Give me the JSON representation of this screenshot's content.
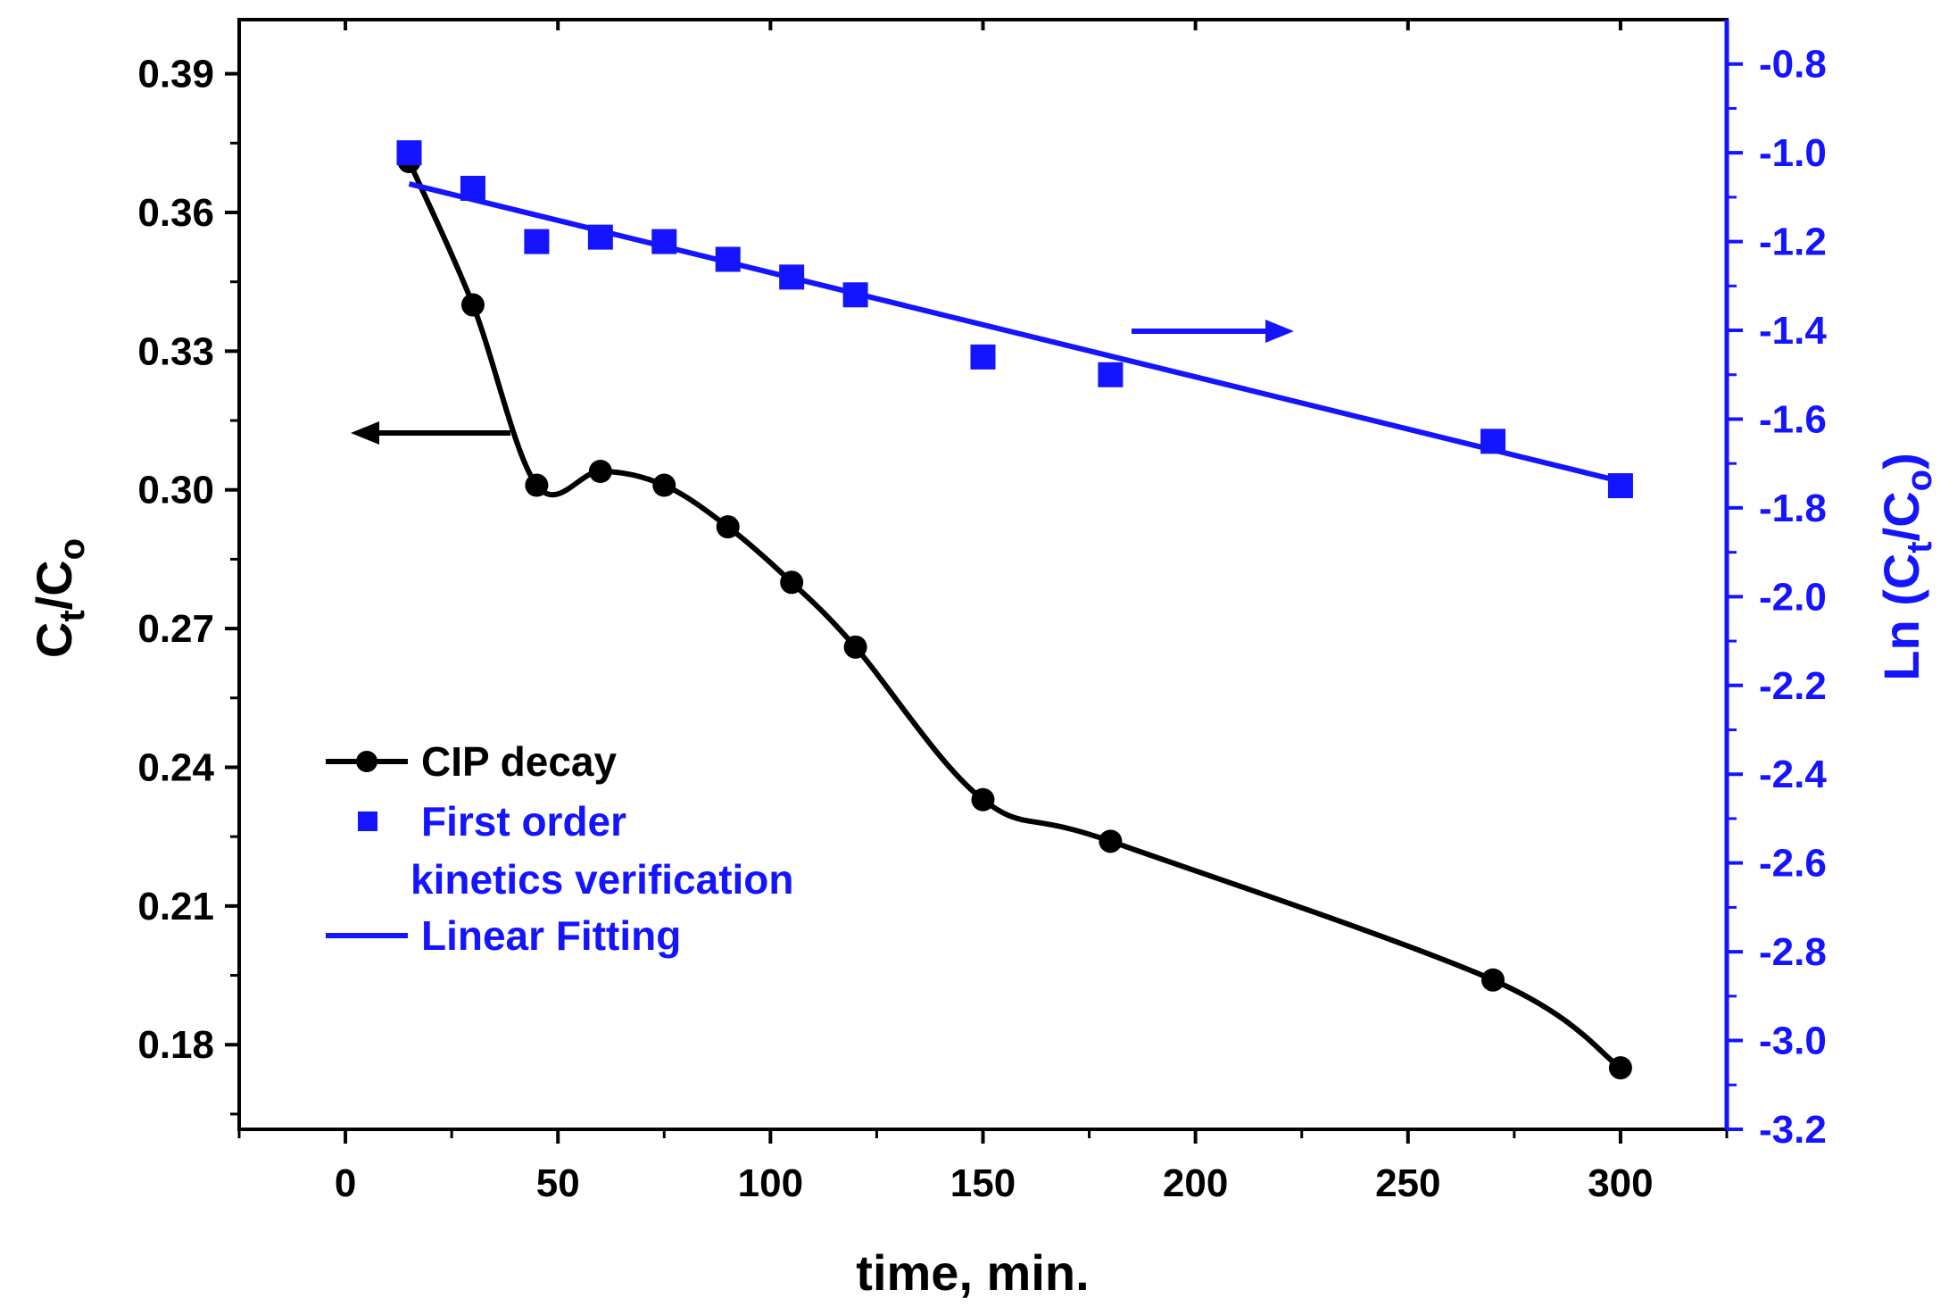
{
  "chart_data": {
    "type": "line",
    "xlabel": "time, min.",
    "ylabel_left": {
      "main": "C",
      "sub1": "t",
      "sep": "/C",
      "sub2": "o"
    },
    "ylabel_right": {
      "pre": "Ln (C",
      "sub1": "t",
      "sep": "/C",
      "sub2": "o",
      "post": ")"
    },
    "xlim": [
      -25,
      325
    ],
    "ylim_left": [
      0.1617,
      0.4017
    ],
    "ylim_right": [
      -3.2,
      -0.7
    ],
    "x_ticks": [
      0,
      50,
      100,
      150,
      200,
      250,
      300
    ],
    "y_left_ticks": [
      "0.18",
      "0.21",
      "0.24",
      "0.27",
      "0.30",
      "0.33",
      "0.36",
      "0.39"
    ],
    "y_right_ticks": [
      "-3.2",
      "-3.0",
      "-2.8",
      "-2.6",
      "-2.4",
      "-2.2",
      "-2.0",
      "-1.8",
      "-1.6",
      "-1.4",
      "-1.2",
      "-1.0",
      "-0.8"
    ],
    "colors": {
      "decay": "#000000",
      "kinetics": "#1414ff"
    },
    "series": [
      {
        "name": "CIP decay",
        "axis": "left",
        "style": "line+circle",
        "x": [
          15,
          30,
          45,
          60,
          75,
          90,
          105,
          120,
          150,
          180,
          270,
          300
        ],
        "y": [
          0.371,
          0.34,
          0.301,
          0.304,
          0.301,
          0.292,
          0.28,
          0.266,
          0.233,
          0.224,
          0.194,
          0.175
        ]
      },
      {
        "name": "First order kinetics verification",
        "axis": "right",
        "style": "square",
        "x": [
          15,
          30,
          45,
          60,
          75,
          90,
          105,
          120,
          150,
          180,
          270,
          300
        ],
        "y": [
          -1.0,
          -1.08,
          -1.2,
          -1.19,
          -1.2,
          -1.24,
          -1.28,
          -1.32,
          -1.46,
          -1.5,
          -1.65,
          -1.75
        ]
      },
      {
        "name": "Linear Fitting",
        "axis": "right",
        "style": "line",
        "x": [
          15,
          300
        ],
        "y": [
          -1.07,
          -1.74
        ]
      }
    ],
    "legend": {
      "position": "bottom-left",
      "entries": [
        "CIP decay",
        "First order",
        "kinetics verification",
        "Linear Fitting"
      ]
    },
    "annotations": [
      {
        "type": "arrow",
        "direction": "left",
        "meaning": "CIP decay uses left axis"
      },
      {
        "type": "arrow",
        "direction": "right",
        "meaning": "Linear fit uses right axis"
      }
    ]
  }
}
